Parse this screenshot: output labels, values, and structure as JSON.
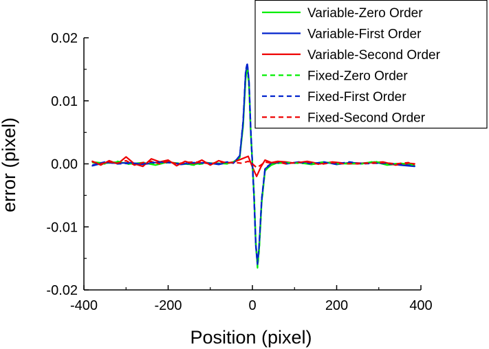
{
  "chart_data": {
    "type": "line",
    "title": "",
    "xlabel": "Position (pixel)",
    "ylabel": "error (pixel)",
    "xlim": [
      -400,
      400
    ],
    "ylim": [
      -0.02,
      0.02
    ],
    "x_ticks": [
      -400,
      -200,
      0,
      200,
      400
    ],
    "x_tick_labels": [
      "-400",
      "-200",
      "0",
      "200",
      "400"
    ],
    "y_ticks": [
      -0.02,
      -0.01,
      0.0,
      0.01,
      0.02
    ],
    "y_tick_labels": [
      "-0.02",
      "-0.01",
      "0.00",
      "0.01",
      "0.02"
    ],
    "grid": false,
    "legend_position": "top-right",
    "series": [
      {
        "name": "Variable-Zero Order",
        "color": "#00ee00",
        "dash": "solid",
        "x": [
          -380,
          -350,
          -320,
          -290,
          -260,
          -230,
          -200,
          -170,
          -140,
          -110,
          -80,
          -60,
          -45,
          -30,
          -22,
          -16,
          -12,
          -8,
          -4,
          0,
          4,
          8,
          12,
          16,
          22,
          30,
          45,
          60,
          80,
          110,
          140,
          170,
          200,
          230,
          260,
          290,
          320,
          350,
          385
        ],
        "y": [
          0.0003,
          0.0001,
          0.0003,
          0.0,
          0.0002,
          -0.0002,
          0.0003,
          0.0,
          -0.0001,
          0.0002,
          0.0,
          0.0001,
          0.0002,
          0.001,
          0.006,
          0.0135,
          0.0155,
          0.0125,
          0.005,
          0.0,
          -0.005,
          -0.0125,
          -0.0162,
          -0.0135,
          -0.006,
          -0.001,
          -0.0002,
          0.0002,
          0.0001,
          0.0002,
          -0.0001,
          0.0002,
          0.0001,
          0.0,
          0.0001,
          0.0003,
          -0.0002,
          0.0,
          -0.0003
        ]
      },
      {
        "name": "Variable-First Order",
        "color": "#0022cc",
        "dash": "solid",
        "x": [
          -380,
          -350,
          -320,
          -290,
          -260,
          -230,
          -200,
          -170,
          -140,
          -110,
          -80,
          -60,
          -45,
          -30,
          -22,
          -16,
          -12,
          -8,
          -4,
          0,
          4,
          8,
          12,
          16,
          22,
          30,
          45,
          60,
          80,
          110,
          140,
          170,
          200,
          230,
          260,
          290,
          320,
          350,
          385
        ],
        "y": [
          -0.0003,
          0.0002,
          0.0001,
          0.0002,
          -0.0001,
          0.0002,
          0.0003,
          -0.0001,
          0.0001,
          0.0002,
          -0.0001,
          0.0002,
          0.0002,
          0.0012,
          0.0065,
          0.0145,
          0.0158,
          0.013,
          0.0052,
          0.0,
          -0.0052,
          -0.013,
          -0.016,
          -0.013,
          -0.0058,
          -0.0008,
          0.0,
          0.0003,
          0.0,
          0.0003,
          0.0,
          0.0003,
          -0.0001,
          0.0002,
          0.0001,
          0.0002,
          0.0,
          -0.0002,
          -0.0004
        ]
      },
      {
        "name": "Variable-Second Order",
        "color": "#ee0000",
        "dash": "solid",
        "x": [
          -380,
          -360,
          -340,
          -320,
          -300,
          -280,
          -260,
          -240,
          -220,
          -200,
          -180,
          -160,
          -140,
          -120,
          -100,
          -80,
          -60,
          -40,
          -25,
          -10,
          0,
          10,
          20,
          30,
          45,
          60,
          80,
          100,
          130,
          160,
          190,
          220,
          250,
          280,
          310,
          340,
          370,
          385
        ],
        "y": [
          0.0004,
          -0.0002,
          0.0005,
          0.0,
          0.0011,
          0.0,
          -0.0004,
          0.0008,
          0.0003,
          0.0006,
          -0.0003,
          0.0004,
          0.0,
          0.0006,
          -0.0002,
          0.0005,
          0.0001,
          0.0004,
          0.0008,
          0.0012,
          -0.0005,
          -0.002,
          -0.0005,
          0.0006,
          0.0002,
          0.0004,
          0.0003,
          0.0001,
          0.0004,
          0.0,
          0.0003,
          0.0001,
          0.0,
          0.0002,
          0.0003,
          -0.0002,
          0.0001,
          0.0
        ]
      },
      {
        "name": "Fixed-Zero Order",
        "color": "#00ee00",
        "dash": "dashed",
        "x": [
          -380,
          -350,
          -320,
          -290,
          -260,
          -230,
          -200,
          -170,
          -140,
          -110,
          -80,
          -60,
          -45,
          -30,
          -22,
          -16,
          -12,
          -8,
          -4,
          0,
          4,
          8,
          12,
          16,
          22,
          30,
          45,
          60,
          80,
          110,
          140,
          170,
          200,
          230,
          260,
          290,
          320,
          350,
          385
        ],
        "y": [
          0.0002,
          0.0,
          0.0004,
          -0.0001,
          0.0001,
          -0.0001,
          0.0002,
          0.0001,
          -0.0002,
          0.0001,
          0.0001,
          0.0,
          0.0003,
          0.0011,
          0.0062,
          0.0138,
          0.0152,
          0.0122,
          0.0048,
          0.0,
          -0.0048,
          -0.0122,
          -0.0165,
          -0.0138,
          -0.0062,
          -0.0011,
          -0.0001,
          0.0001,
          0.0002,
          0.0001,
          0.0,
          0.0003,
          0.0,
          0.0001,
          0.0,
          0.0004,
          -0.0001,
          0.0001,
          -0.0002
        ]
      },
      {
        "name": "Fixed-First Order",
        "color": "#0022cc",
        "dash": "dashed",
        "x": [
          -380,
          -350,
          -320,
          -290,
          -260,
          -230,
          -200,
          -170,
          -140,
          -110,
          -80,
          -60,
          -45,
          -30,
          -22,
          -16,
          -12,
          -8,
          -4,
          0,
          4,
          8,
          12,
          16,
          22,
          30,
          45,
          60,
          80,
          110,
          140,
          170,
          200,
          230,
          260,
          290,
          320,
          350,
          385
        ],
        "y": [
          -0.0002,
          0.0003,
          0.0,
          0.0001,
          0.0,
          0.0003,
          0.0002,
          0.0,
          0.0002,
          0.0001,
          0.0,
          0.0003,
          0.0001,
          0.0013,
          0.0068,
          0.0148,
          0.016,
          0.0128,
          0.0055,
          0.0,
          -0.0055,
          -0.0128,
          -0.0158,
          -0.0128,
          -0.0055,
          -0.0007,
          0.0001,
          0.0002,
          0.0001,
          0.0002,
          0.0001,
          0.0002,
          0.0,
          0.0003,
          0.0,
          0.0001,
          0.0001,
          -0.0001,
          -0.0003
        ]
      },
      {
        "name": "Fixed-Second Order",
        "color": "#ee0000",
        "dash": "dashed",
        "x": [
          -380,
          -360,
          -340,
          -320,
          -300,
          -280,
          -260,
          -240,
          -220,
          -200,
          -180,
          -160,
          -140,
          -120,
          -100,
          -80,
          -60,
          -40,
          -25,
          -10,
          0,
          10,
          20,
          30,
          45,
          60,
          80,
          100,
          130,
          160,
          190,
          220,
          250,
          280,
          310,
          340,
          370,
          385
        ],
        "y": [
          0.0003,
          0.0,
          0.0003,
          0.0001,
          0.0005,
          -0.0002,
          0.0002,
          0.0004,
          0.0,
          0.0004,
          0.0,
          0.0002,
          0.0003,
          0.0002,
          0.0,
          0.0003,
          0.0002,
          0.0002,
          0.0001,
          0.0004,
          0.0,
          -0.0006,
          -0.0002,
          0.0003,
          0.0001,
          0.0003,
          0.0,
          0.0002,
          0.0003,
          -0.0001,
          0.0002,
          0.0,
          0.0001,
          0.0001,
          0.0002,
          0.0,
          0.0002,
          -0.0001
        ]
      }
    ]
  }
}
